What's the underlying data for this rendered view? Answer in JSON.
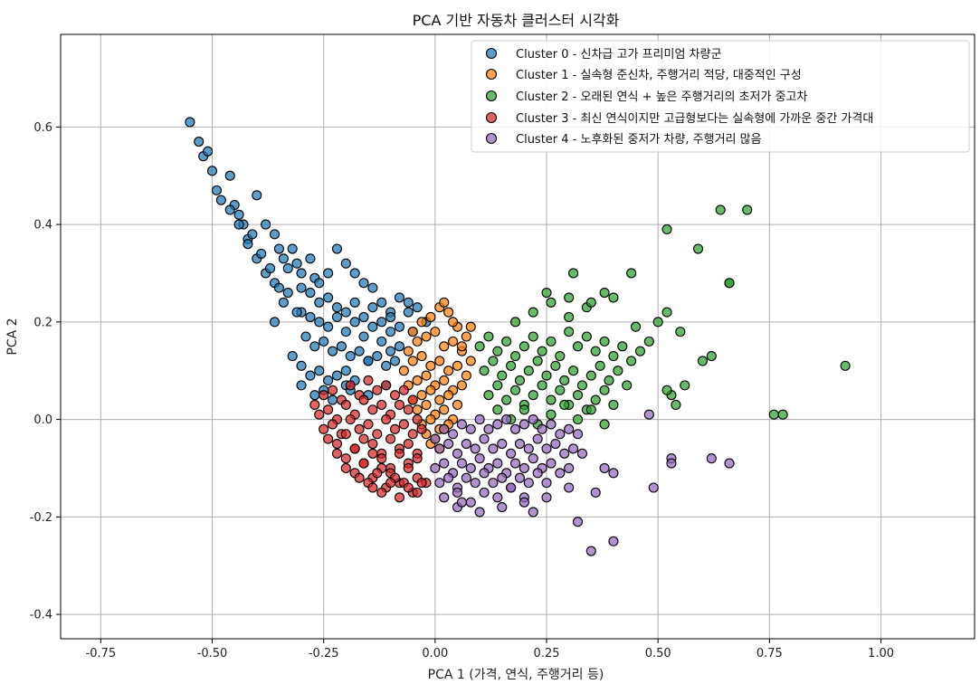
{
  "chart_data": {
    "type": "scatter",
    "title": "PCA 기반 자동차 클러스터 시각화",
    "xlabel": "PCA 1 (가격, 연식, 주행거리 등)",
    "ylabel": "PCA 2",
    "xlim": [
      -0.84,
      1.21
    ],
    "ylim": [
      -0.45,
      0.79
    ],
    "xticks": [
      -0.75,
      -0.5,
      -0.25,
      0.0,
      0.25,
      0.5,
      0.75,
      1.0
    ],
    "xtick_labels": [
      "-0.75",
      "-0.50",
      "-0.25",
      "0.00",
      "0.25",
      "0.50",
      "0.75",
      "1.00"
    ],
    "yticks": [
      -0.4,
      -0.2,
      0.0,
      0.2,
      0.4,
      0.6
    ],
    "ytick_labels": [
      "-0.4",
      "-0.2",
      "0.0",
      "0.2",
      "0.4",
      "0.6"
    ],
    "grid": true,
    "legend_position": "top-right",
    "series": [
      {
        "name": "Cluster 0 - 신차급 고가 프리미엄 차량군",
        "color": "#1f77b4",
        "x": [
          -0.55,
          -0.53,
          -0.52,
          -0.51,
          -0.5,
          -0.49,
          -0.48,
          -0.46,
          -0.45,
          -0.44,
          -0.43,
          -0.42,
          -0.4,
          -0.38,
          -0.36,
          -0.35,
          -0.34,
          -0.33,
          -0.32,
          -0.31,
          -0.3,
          -0.28,
          -0.27,
          -0.26,
          -0.24,
          -0.22,
          -0.2,
          -0.18,
          -0.16,
          -0.14,
          -0.12,
          -0.1,
          -0.08,
          -0.06,
          -0.04,
          -0.02,
          -0.3,
          -0.28,
          -0.26,
          -0.24,
          -0.22,
          -0.2,
          -0.18,
          -0.16,
          -0.14,
          -0.12,
          -0.1,
          -0.08,
          -0.06,
          -0.3,
          -0.28,
          -0.26,
          -0.24,
          -0.22,
          -0.2,
          -0.18,
          -0.16,
          -0.14,
          -0.12,
          -0.1,
          -0.08,
          -0.29,
          -0.27,
          -0.25,
          -0.23,
          -0.21,
          -0.19,
          -0.17,
          -0.15,
          -0.13,
          -0.11,
          -0.09,
          -0.32,
          -0.3,
          -0.28,
          -0.26,
          -0.24,
          -0.22,
          -0.2,
          -0.18,
          -0.34,
          -0.31,
          -0.36,
          -0.33,
          -0.38,
          -0.35,
          -0.4,
          -0.37,
          -0.42,
          -0.39,
          -0.44,
          -0.41,
          -0.46,
          -0.36,
          -0.3,
          -0.25,
          -0.2,
          -0.15,
          -0.1,
          -0.05,
          -0.27,
          -0.23,
          -0.19,
          -0.15,
          -0.11
        ],
        "y": [
          0.61,
          0.57,
          0.54,
          0.55,
          0.51,
          0.47,
          0.45,
          0.5,
          0.44,
          0.42,
          0.4,
          0.37,
          0.46,
          0.4,
          0.38,
          0.35,
          0.33,
          0.31,
          0.35,
          0.32,
          0.3,
          0.33,
          0.29,
          0.28,
          0.3,
          0.35,
          0.32,
          0.3,
          0.28,
          0.27,
          0.24,
          0.22,
          0.25,
          0.24,
          0.23,
          0.2,
          0.27,
          0.26,
          0.24,
          0.25,
          0.23,
          0.22,
          0.24,
          0.21,
          0.23,
          0.2,
          0.21,
          0.19,
          0.22,
          0.22,
          0.21,
          0.2,
          0.19,
          0.21,
          0.18,
          0.2,
          0.17,
          0.19,
          0.16,
          0.18,
          0.15,
          0.17,
          0.15,
          0.16,
          0.14,
          0.15,
          0.13,
          0.14,
          0.12,
          0.13,
          0.11,
          0.12,
          0.13,
          0.11,
          0.09,
          0.1,
          0.08,
          0.09,
          0.07,
          0.08,
          0.24,
          0.22,
          0.28,
          0.26,
          0.3,
          0.27,
          0.33,
          0.31,
          0.36,
          0.34,
          0.4,
          0.38,
          0.43,
          0.2,
          0.07,
          0.06,
          0.1,
          0.12,
          0.14,
          0.18,
          0.05,
          0.04,
          0.06,
          0.05,
          0.07
        ]
      },
      {
        "name": "Cluster 1 - 실속형 준신차, 주행거리 적당, 대중적인 구성",
        "color": "#ff7f0e",
        "x": [
          -0.05,
          -0.03,
          -0.01,
          0.01,
          0.03,
          0.05,
          0.07,
          -0.06,
          -0.04,
          -0.02,
          0.0,
          0.02,
          0.04,
          0.06,
          0.08,
          -0.07,
          -0.05,
          -0.03,
          -0.01,
          0.01,
          0.03,
          0.05,
          0.07,
          -0.06,
          -0.04,
          -0.02,
          0.0,
          0.02,
          0.04,
          0.06,
          -0.05,
          -0.03,
          -0.01,
          0.01,
          0.03,
          0.05,
          -0.04,
          -0.02,
          0.0,
          0.02,
          0.04,
          -0.03,
          -0.01,
          0.01,
          0.03,
          -0.02,
          0.0,
          0.02,
          -0.01,
          0.01,
          0.02,
          0.04,
          0.08,
          0.06
        ],
        "y": [
          0.18,
          0.2,
          0.21,
          0.23,
          0.22,
          0.19,
          0.17,
          0.14,
          0.16,
          0.17,
          0.18,
          0.15,
          0.16,
          0.14,
          0.12,
          0.1,
          0.12,
          0.13,
          0.11,
          0.12,
          0.1,
          0.11,
          0.09,
          0.07,
          0.08,
          0.09,
          0.07,
          0.08,
          0.06,
          0.07,
          0.04,
          0.05,
          0.06,
          0.04,
          0.05,
          0.03,
          0.02,
          0.03,
          0.01,
          0.02,
          0.0,
          -0.01,
          0.0,
          -0.02,
          -0.01,
          -0.03,
          -0.04,
          -0.02,
          -0.05,
          -0.06,
          0.24,
          0.2,
          0.19,
          0.15
        ]
      },
      {
        "name": "Cluster 2 - 오래된 연식 + 높은 주행거리의 초저가 중고차",
        "color": "#2ca02c",
        "x": [
          0.1,
          0.12,
          0.14,
          0.16,
          0.18,
          0.2,
          0.22,
          0.24,
          0.26,
          0.28,
          0.3,
          0.32,
          0.34,
          0.36,
          0.38,
          0.4,
          0.42,
          0.44,
          0.46,
          0.11,
          0.13,
          0.15,
          0.17,
          0.19,
          0.21,
          0.23,
          0.25,
          0.27,
          0.29,
          0.31,
          0.33,
          0.35,
          0.37,
          0.39,
          0.41,
          0.43,
          0.12,
          0.14,
          0.16,
          0.18,
          0.2,
          0.22,
          0.24,
          0.26,
          0.28,
          0.3,
          0.32,
          0.34,
          0.36,
          0.38,
          0.4,
          0.14,
          0.17,
          0.2,
          0.23,
          0.26,
          0.29,
          0.32,
          0.35,
          0.38,
          0.18,
          0.22,
          0.26,
          0.3,
          0.34,
          0.25,
          0.3,
          0.35,
          0.4,
          0.45,
          0.48,
          0.5,
          0.52,
          0.55,
          0.53,
          0.56,
          0.6,
          0.62,
          0.64,
          0.66,
          0.7,
          0.52,
          0.52,
          0.54,
          0.59,
          0.66,
          0.76,
          0.78,
          0.92,
          0.31,
          0.44,
          0.38
        ],
        "y": [
          0.15,
          0.17,
          0.14,
          0.16,
          0.13,
          0.15,
          0.17,
          0.14,
          0.16,
          0.13,
          0.18,
          0.15,
          0.17,
          0.14,
          0.16,
          0.13,
          0.15,
          0.12,
          0.14,
          0.1,
          0.12,
          0.09,
          0.11,
          0.08,
          0.1,
          0.12,
          0.09,
          0.11,
          0.08,
          0.1,
          0.07,
          0.09,
          0.11,
          0.08,
          0.1,
          0.07,
          0.05,
          0.07,
          0.04,
          0.06,
          0.03,
          0.05,
          0.07,
          0.04,
          0.06,
          0.03,
          0.05,
          0.02,
          0.04,
          0.06,
          0.03,
          0.02,
          0.0,
          0.02,
          -0.01,
          0.01,
          0.03,
          0.0,
          0.02,
          -0.01,
          0.2,
          0.22,
          0.24,
          0.21,
          0.23,
          0.26,
          0.25,
          0.24,
          0.25,
          0.19,
          0.16,
          0.2,
          0.22,
          0.18,
          0.05,
          0.07,
          0.12,
          0.13,
          0.43,
          0.28,
          0.43,
          0.39,
          0.06,
          0.03,
          0.35,
          0.28,
          0.01,
          0.01,
          0.11,
          0.3,
          0.3,
          0.26
        ]
      },
      {
        "name": "Cluster 3 - 최신 연식이지만 고급형보다는 실속형에 가까운 중간 가격대",
        "color": "#d62728",
        "x": [
          -0.27,
          -0.25,
          -0.23,
          -0.21,
          -0.19,
          -0.17,
          -0.15,
          -0.13,
          -0.11,
          -0.09,
          -0.07,
          -0.05,
          -0.26,
          -0.24,
          -0.22,
          -0.2,
          -0.18,
          -0.16,
          -0.14,
          -0.12,
          -0.1,
          -0.08,
          -0.06,
          -0.04,
          -0.25,
          -0.23,
          -0.21,
          -0.19,
          -0.17,
          -0.15,
          -0.13,
          -0.11,
          -0.09,
          -0.07,
          -0.05,
          -0.03,
          -0.24,
          -0.22,
          -0.2,
          -0.18,
          -0.16,
          -0.14,
          -0.12,
          -0.1,
          -0.08,
          -0.06,
          -0.04,
          -0.22,
          -0.2,
          -0.18,
          -0.16,
          -0.14,
          -0.12,
          -0.1,
          -0.08,
          -0.06,
          -0.04,
          -0.2,
          -0.18,
          -0.16,
          -0.14,
          -0.12,
          -0.1,
          -0.08,
          -0.06,
          -0.04,
          -0.02,
          -0.17,
          -0.15,
          -0.13,
          -0.11,
          -0.09,
          -0.07,
          -0.05,
          -0.03,
          -0.14,
          -0.12,
          -0.1,
          -0.08,
          -0.06,
          -0.04
        ],
        "y": [
          0.03,
          0.05,
          0.06,
          0.04,
          0.07,
          0.05,
          0.08,
          0.06,
          0.07,
          0.05,
          0.06,
          0.04,
          0.01,
          0.02,
          0.0,
          0.03,
          0.01,
          0.04,
          0.02,
          0.03,
          0.01,
          0.03,
          0.02,
          0.0,
          -0.02,
          -0.01,
          -0.03,
          0.0,
          -0.02,
          -0.01,
          -0.03,
          0.0,
          -0.02,
          -0.01,
          -0.03,
          -0.02,
          -0.04,
          -0.05,
          -0.03,
          -0.06,
          -0.04,
          -0.05,
          -0.07,
          -0.04,
          -0.06,
          -0.05,
          -0.07,
          -0.07,
          -0.08,
          -0.06,
          -0.09,
          -0.07,
          -0.08,
          -0.1,
          -0.07,
          -0.09,
          -0.08,
          -0.1,
          -0.11,
          -0.09,
          -0.12,
          -0.1,
          -0.11,
          -0.13,
          -0.1,
          -0.12,
          -0.13,
          -0.12,
          -0.13,
          -0.11,
          -0.14,
          -0.12,
          -0.13,
          -0.15,
          -0.13,
          -0.14,
          -0.15,
          -0.13,
          -0.16,
          -0.14,
          -0.15
        ]
      },
      {
        "name": "Cluster 4 - 노후화된 중저가 차량, 주행거리 많음",
        "color": "#9467bd",
        "x": [
          0.0,
          0.02,
          0.04,
          0.06,
          0.08,
          0.1,
          0.12,
          0.14,
          0.16,
          0.18,
          0.2,
          0.22,
          0.24,
          0.26,
          0.28,
          0.3,
          0.32,
          0.01,
          0.03,
          0.05,
          0.07,
          0.09,
          0.11,
          0.13,
          0.15,
          0.17,
          0.19,
          0.21,
          0.23,
          0.25,
          0.27,
          0.29,
          0.31,
          0.33,
          0.0,
          0.02,
          0.04,
          0.06,
          0.08,
          0.1,
          0.12,
          0.14,
          0.16,
          0.18,
          0.2,
          0.22,
          0.24,
          0.26,
          0.28,
          0.3,
          0.01,
          0.03,
          0.05,
          0.07,
          0.09,
          0.11,
          0.13,
          0.15,
          0.17,
          0.19,
          0.21,
          0.23,
          0.25,
          0.02,
          0.05,
          0.08,
          0.11,
          0.14,
          0.17,
          0.2,
          0.05,
          0.1,
          0.15,
          0.2,
          0.25,
          0.3,
          0.32,
          0.38,
          0.4,
          0.36,
          0.35,
          0.4,
          0.49,
          0.53,
          0.53,
          0.62,
          0.66,
          0.48,
          0.22,
          0.06
        ],
        "y": [
          -0.04,
          -0.02,
          -0.03,
          -0.01,
          -0.02,
          0.0,
          -0.02,
          -0.01,
          0.0,
          -0.02,
          -0.01,
          0.0,
          -0.02,
          -0.01,
          -0.03,
          -0.02,
          -0.03,
          -0.06,
          -0.05,
          -0.07,
          -0.05,
          -0.06,
          -0.04,
          -0.06,
          -0.05,
          -0.07,
          -0.05,
          -0.06,
          -0.04,
          -0.06,
          -0.05,
          -0.07,
          -0.06,
          -0.07,
          -0.1,
          -0.09,
          -0.11,
          -0.09,
          -0.1,
          -0.08,
          -0.1,
          -0.09,
          -0.11,
          -0.09,
          -0.1,
          -0.08,
          -0.1,
          -0.09,
          -0.11,
          -0.1,
          -0.13,
          -0.12,
          -0.14,
          -0.12,
          -0.13,
          -0.11,
          -0.13,
          -0.12,
          -0.14,
          -0.12,
          -0.13,
          -0.11,
          -0.13,
          -0.16,
          -0.15,
          -0.17,
          -0.15,
          -0.16,
          -0.14,
          -0.16,
          -0.18,
          -0.19,
          -0.18,
          -0.17,
          -0.16,
          -0.14,
          -0.21,
          -0.1,
          -0.11,
          -0.15,
          -0.27,
          -0.25,
          -0.14,
          -0.08,
          -0.09,
          -0.08,
          -0.09,
          0.01,
          -0.19,
          -0.17
        ]
      }
    ]
  }
}
